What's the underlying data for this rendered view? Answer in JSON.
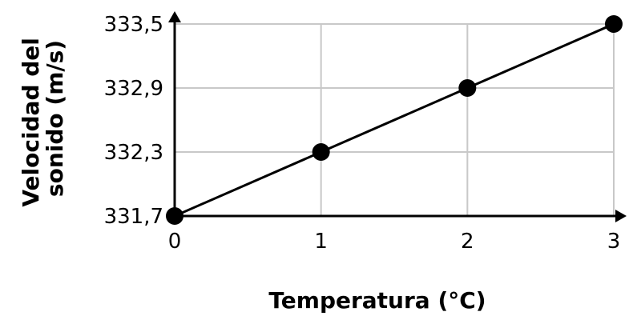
{
  "chart_data": {
    "type": "line",
    "title": "",
    "xlabel": "Temperatura (°C)",
    "ylabel_lines": [
      "Velocidad del",
      "sonido (m/s)"
    ],
    "x": [
      0,
      1,
      2,
      3
    ],
    "x_tick_labels": [
      "0",
      "1",
      "2",
      "3"
    ],
    "y_tick_labels": [
      "331,7",
      "332,3",
      "332,9",
      "333,5"
    ],
    "y_ticks": [
      331.7,
      332.3,
      332.9,
      333.5
    ],
    "series": [
      {
        "values": [
          331.7,
          332.3,
          332.9,
          333.5
        ]
      }
    ],
    "xlim": [
      0,
      3
    ],
    "ylim": [
      331.7,
      333.5
    ],
    "grid": true,
    "axis_arrows": true,
    "line_color": "#000000",
    "marker_color": "#000000",
    "grid_color": "#c8c8c8"
  }
}
